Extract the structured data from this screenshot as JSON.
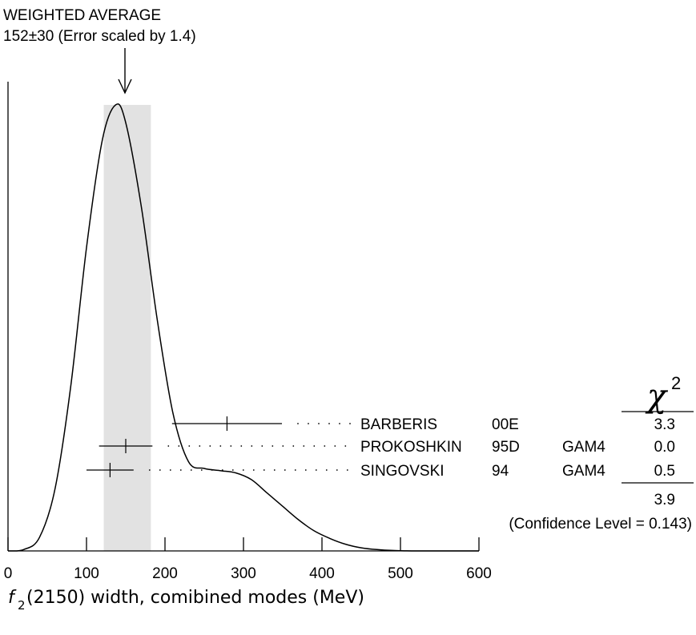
{
  "chart_data": {
    "type": "ideogram",
    "title": "WEIGHTED AVERAGE",
    "subtitle": "152±30 (Error scaled by 1.4)",
    "xlabel_func": "f",
    "xlabel_sub": "2",
    "xlabel_rest": "(2150) width, comibined modes (MeV)",
    "xlim": [
      0,
      600
    ],
    "x_ticks": [
      0,
      100,
      200,
      300,
      400,
      500,
      600
    ],
    "average": {
      "value": 152,
      "error": 30,
      "scale_factor": 1.4
    },
    "band": [
      122,
      182
    ],
    "chi2_header": "χ",
    "chi2_header_sup": "2",
    "measurements": [
      {
        "name": "BARBERIS",
        "ref": "00E",
        "tech": "",
        "value": 279,
        "lo": 209,
        "hi": 349,
        "chi2": "3.3"
      },
      {
        "name": "PROKOSHKIN",
        "ref": "95D",
        "tech": "GAM4",
        "value": 150,
        "lo": 116,
        "hi": 184,
        "chi2": "0.0"
      },
      {
        "name": "SINGOVSKI",
        "ref": "94",
        "tech": "GAM4",
        "value": 130,
        "lo": 100,
        "hi": 160,
        "chi2": "0.5"
      }
    ],
    "chi2_total": "3.9",
    "confidence_level": "(Confidence Level = 0.143)",
    "curve": [
      [
        0,
        0.0
      ],
      [
        20,
        0.003
      ],
      [
        40,
        0.03
      ],
      [
        60,
        0.14
      ],
      [
        80,
        0.37
      ],
      [
        100,
        0.68
      ],
      [
        120,
        0.92
      ],
      [
        137,
        1.0
      ],
      [
        150,
        0.96
      ],
      [
        170,
        0.77
      ],
      [
        190,
        0.52
      ],
      [
        210,
        0.31
      ],
      [
        230,
        0.2
      ],
      [
        250,
        0.185
      ],
      [
        270,
        0.18
      ],
      [
        290,
        0.175
      ],
      [
        310,
        0.16
      ],
      [
        330,
        0.13
      ],
      [
        350,
        0.1
      ],
      [
        370,
        0.07
      ],
      [
        390,
        0.045
      ],
      [
        410,
        0.028
      ],
      [
        430,
        0.015
      ],
      [
        450,
        0.007
      ],
      [
        470,
        0.003
      ],
      [
        490,
        0.001
      ],
      [
        520,
        0.0
      ],
      [
        600,
        0.0
      ]
    ]
  }
}
